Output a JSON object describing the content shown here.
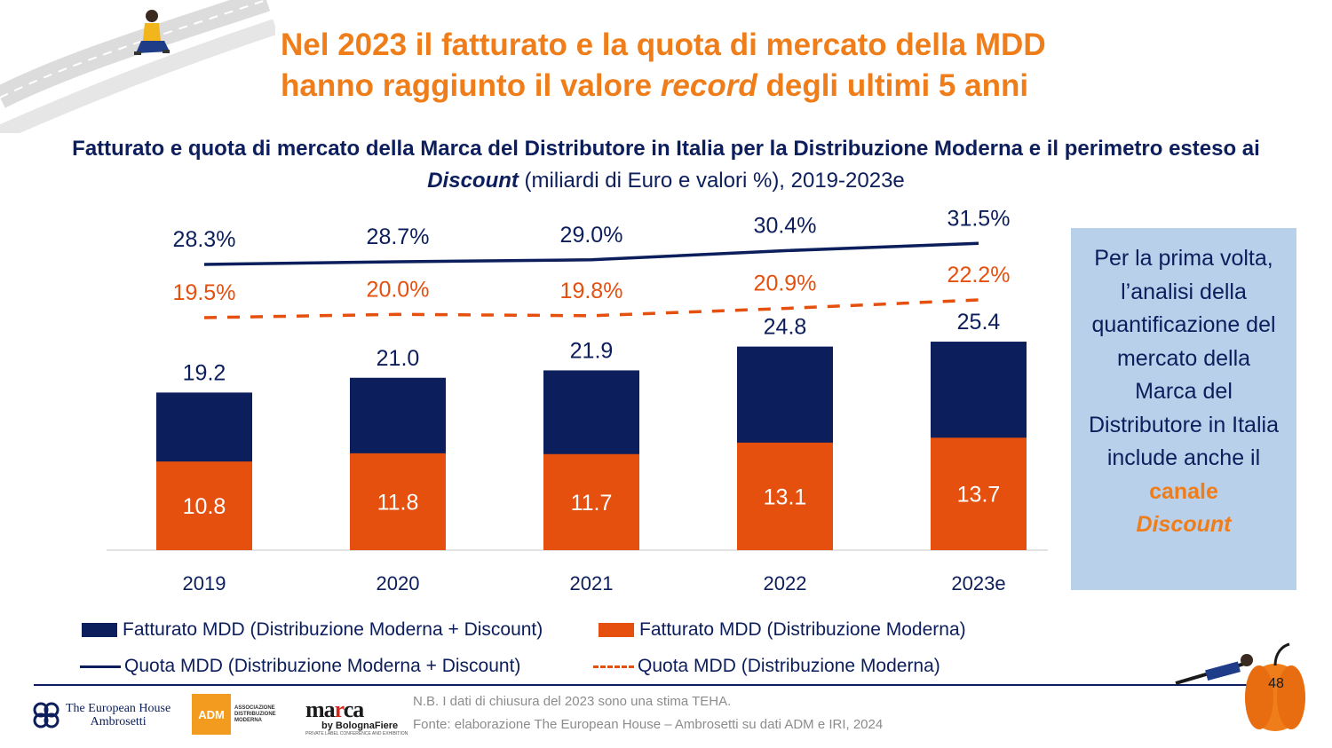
{
  "slide": {
    "title_line1": "Nel 2023 il fatturato e la quota di mercato della MDD",
    "title_line2_pre": "hanno raggiunto il valore ",
    "title_line2_em": "record",
    "title_line2_post": " degli ultimi 5 anni",
    "subtitle_bold1": "Fatturato e quota di mercato della Marca del Distributore in Italia per la Distribuzione Moderna e il perimetro esteso ai ",
    "subtitle_bold_em": "Discount",
    "subtitle_regular": " (miliardi di Euro e valori %), 2019-2023e",
    "page_number": "48"
  },
  "chart_data": {
    "type": "bar",
    "categories": [
      "2019",
      "2020",
      "2021",
      "2022",
      "2023e"
    ],
    "series": [
      {
        "name": "Fatturato MDD (Distribuzione Moderna + Discount)",
        "values": [
          19.2,
          21.0,
          21.9,
          24.8,
          25.4
        ],
        "labels": [
          "19.2",
          "21.0",
          "21.9",
          "24.8",
          "25.4"
        ],
        "color": "#0c1e5b"
      },
      {
        "name": "Fatturato MDD (Distribuzione Moderna)",
        "values": [
          10.8,
          11.8,
          11.7,
          13.1,
          13.7
        ],
        "labels": [
          "10.8",
          "11.8",
          "11.7",
          "13.1",
          "13.7"
        ],
        "color": "#e5500f"
      }
    ],
    "lines": [
      {
        "name": "Quota MDD (Distribuzione Moderna + Discount)",
        "values": [
          28.3,
          28.7,
          29.0,
          30.4,
          31.5
        ],
        "labels": [
          "28.3%",
          "28.7%",
          "29.0%",
          "30.4%",
          "31.5%"
        ],
        "color": "#0c1e5b",
        "style": "solid"
      },
      {
        "name": "Quota MDD (Distribuzione Moderna)",
        "values": [
          19.5,
          20.0,
          19.8,
          20.9,
          22.2
        ],
        "labels": [
          "19.5%",
          "20.0%",
          "19.8%",
          "20.9%",
          "22.2%"
        ],
        "color": "#e5500f",
        "style": "dashed"
      }
    ],
    "ylim": [
      0,
      30
    ],
    "legend_position": "bottom",
    "grid": false
  },
  "note": {
    "text": "Per la prima volta, l’analisi della quantificazione del mercato della Marca del Distributore in Italia include anche il ",
    "highlight": "canale",
    "highlight_em": "Discount"
  },
  "footnotes": {
    "nb": "N.B. I dati di chiusura del 2023 sono una stima TEHA.",
    "source": "Fonte: elaborazione The European House – Ambrosetti su dati ADM e IRI, 2024"
  },
  "logos": {
    "teh_line1": "The European House",
    "teh_line2": "Ambrosetti",
    "adm_mark": "ADM",
    "adm_text": "ASSOCIAZIONE DISTRIBUZIONE MODERNA",
    "marca_pre": "ma",
    "marca_r": "r",
    "marca_post": "ca",
    "marca_by": "by BolognaFiere",
    "marca_tag": "PRIVATE LABEL CONFERENCE AND EXHIBITION"
  }
}
